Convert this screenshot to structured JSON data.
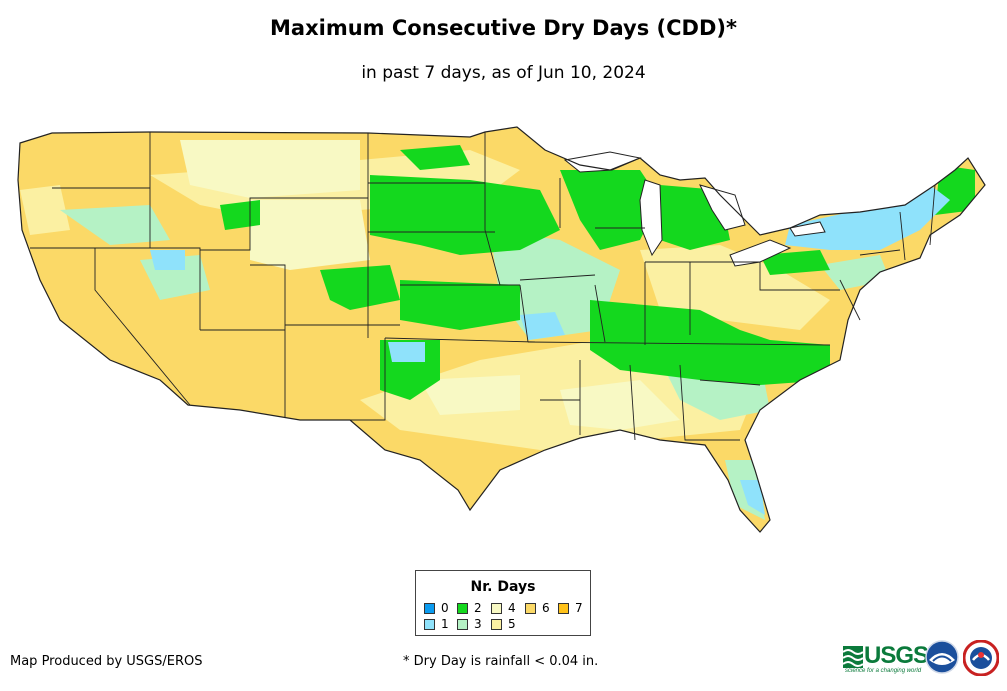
{
  "title": "Maximum Consecutive Dry Days (CDD)*",
  "subtitle": "in past 7 days, as of Jun 10, 2024",
  "legend": {
    "title": "Nr. Days",
    "items": [
      {
        "label": "0",
        "color": "#0b9bef"
      },
      {
        "label": "1",
        "color": "#8fe2fb"
      },
      {
        "label": "2",
        "color": "#14d81e"
      },
      {
        "label": "3",
        "color": "#b5f2c5"
      },
      {
        "label": "4",
        "color": "#f8f9c4"
      },
      {
        "label": "5",
        "color": "#fbf0a2"
      },
      {
        "label": "6",
        "color": "#fbd967"
      },
      {
        "label": "7",
        "color": "#ffc21a"
      }
    ]
  },
  "credit": "Map Produced by USGS/EROS",
  "footnote": "* Dry Day is rainfall < 0.04 in.",
  "logos": {
    "usgs": "USGS",
    "usgs_tagline": "science for a changing world"
  },
  "map": {
    "region": "Contiguous United States",
    "base_color": "#fbd967",
    "border_color": "#222222"
  }
}
